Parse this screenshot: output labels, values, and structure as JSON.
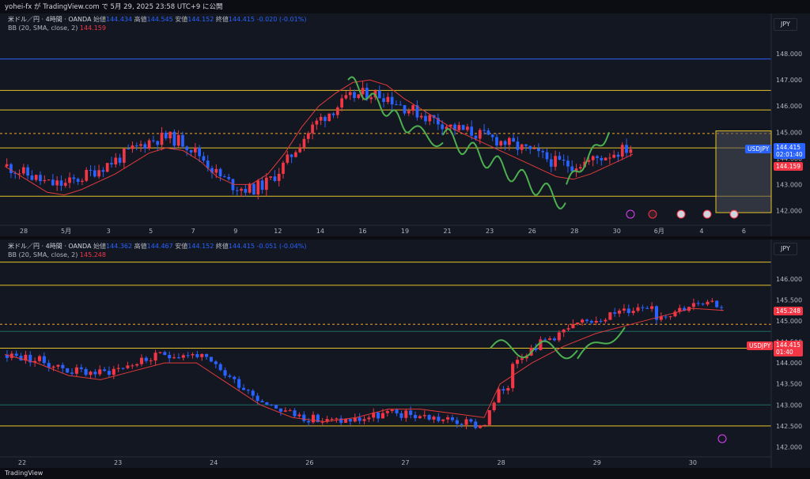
{
  "header": {
    "publish_text": "yohei-fx が TradingView.com で 5月 29, 2025 23:58 UTC+9 に公開"
  },
  "footer": {
    "logo_text": "TradingView"
  },
  "colors": {
    "up": "#f23645",
    "down": "#2962ff",
    "bb": "#e03a3a",
    "support": "#e6c229",
    "blue_line": "#2962ff",
    "teal_line": "#1e6b66",
    "wave": "#4caf50",
    "bg": "#131722"
  },
  "chart_data": [
    {
      "type": "candlestick",
      "timeframe": "4時間",
      "legend": {
        "symbol": "米ドル／円 · 4時間 · OANDA",
        "open_label": "始値",
        "open": "144.434",
        "high_label": "高値",
        "high": "144.545",
        "low_label": "安値",
        "low": "144.152",
        "close_label": "終値",
        "close": "144.415",
        "change": "-0.020 (-0.01%)",
        "bb_label": "BB (20, SMA, close, 2)",
        "bb_value": "144.159"
      },
      "currency": "JPY",
      "ylim": [
        141.5,
        149.0
      ],
      "y_ticks": [
        "148.000",
        "147.000",
        "146.000",
        "145.000",
        "144.000",
        "143.000",
        "142.000"
      ],
      "x_labels": [
        "28",
        "5月",
        "3",
        "5",
        "7",
        "9",
        "12",
        "14",
        "16",
        "19",
        "21",
        "23",
        "26",
        "28",
        "30",
        "6月",
        "4",
        "6"
      ],
      "horizontal_levels": {
        "blue": [
          147.8
        ],
        "yellow": [
          146.6,
          145.85,
          144.4,
          142.55
        ],
        "dashed_orange": [
          144.95
        ]
      },
      "bb_points": [
        [
          0,
          143.7
        ],
        [
          6,
          143.1
        ],
        [
          10,
          142.7
        ],
        [
          14,
          142.6
        ],
        [
          18,
          142.8
        ],
        [
          22,
          143.1
        ],
        [
          26,
          143.4
        ],
        [
          30,
          143.8
        ],
        [
          34,
          144.2
        ],
        [
          38,
          144.4
        ],
        [
          42,
          144.3
        ],
        [
          46,
          143.9
        ],
        [
          50,
          143.3
        ],
        [
          54,
          143.0
        ],
        [
          58,
          143.0
        ],
        [
          62,
          143.4
        ],
        [
          66,
          144.2
        ],
        [
          70,
          145.2
        ],
        [
          74,
          146.0
        ],
        [
          78,
          146.5
        ],
        [
          82,
          146.9
        ],
        [
          86,
          147.0
        ],
        [
          90,
          146.8
        ],
        [
          94,
          146.3
        ],
        [
          98,
          145.9
        ],
        [
          102,
          145.5
        ],
        [
          106,
          145.1
        ],
        [
          110,
          144.8
        ],
        [
          114,
          144.5
        ],
        [
          118,
          144.2
        ],
        [
          122,
          143.9
        ],
        [
          126,
          143.6
        ],
        [
          130,
          143.3
        ],
        [
          134,
          143.2
        ],
        [
          138,
          143.4
        ],
        [
          142,
          143.7
        ],
        [
          146,
          144.0
        ],
        [
          148,
          144.16
        ]
      ],
      "price_tags": [
        {
          "label": "144.415",
          "sub": "02:01:40",
          "color": "#2962ff"
        },
        {
          "label": "144.159",
          "color": "#f23645"
        }
      ],
      "symbol_tag": "USDJPY"
    },
    {
      "type": "candlestick",
      "timeframe": "4時間",
      "legend": {
        "symbol": "米ドル／円 · 4時間 · OANDA",
        "open_label": "始値",
        "open": "144.362",
        "high_label": "高値",
        "high": "144.467",
        "low_label": "安値",
        "low": "144.152",
        "close_label": "終値",
        "close": "144.415",
        "change": "-0.051 (-0.04%)",
        "bb_label": "BB (20, SMA, close, 2)",
        "bb_value": "145.248"
      },
      "currency": "JPY",
      "ylim": [
        141.8,
        146.6
      ],
      "y_ticks": [
        "146.000",
        "145.500",
        "145.000",
        "144.500",
        "144.000",
        "143.500",
        "143.000",
        "142.500",
        "142.000"
      ],
      "x_labels": [
        "22",
        "23",
        "24",
        "26",
        "27",
        "28",
        "29",
        "30"
      ],
      "horizontal_levels": {
        "yellow": [
          146.4,
          145.85,
          144.35,
          142.5
        ],
        "teal": [
          144.75,
          143.0
        ],
        "dashed_orange": [
          144.92
        ]
      },
      "bb_points": [
        [
          0,
          144.2
        ],
        [
          10,
          144.0
        ],
        [
          20,
          143.7
        ],
        [
          30,
          143.6
        ],
        [
          40,
          143.8
        ],
        [
          50,
          144.0
        ],
        [
          60,
          144.0
        ],
        [
          70,
          143.5
        ],
        [
          80,
          143.0
        ],
        [
          90,
          142.7
        ],
        [
          100,
          142.6
        ],
        [
          110,
          142.7
        ],
        [
          120,
          142.9
        ],
        [
          130,
          142.9
        ],
        [
          140,
          142.8
        ],
        [
          150,
          142.7
        ],
        [
          155,
          143.5
        ],
        [
          165,
          144.0
        ],
        [
          175,
          144.4
        ],
        [
          185,
          144.7
        ],
        [
          195,
          144.9
        ],
        [
          205,
          145.1
        ],
        [
          215,
          145.3
        ],
        [
          225,
          145.25
        ]
      ],
      "price_tags": [
        {
          "label": "145.248",
          "color": "#f23645"
        },
        {
          "label": "144.415",
          "sub": "01:40",
          "color": "#f23645"
        }
      ],
      "symbol_tag": "USDJPY"
    }
  ]
}
